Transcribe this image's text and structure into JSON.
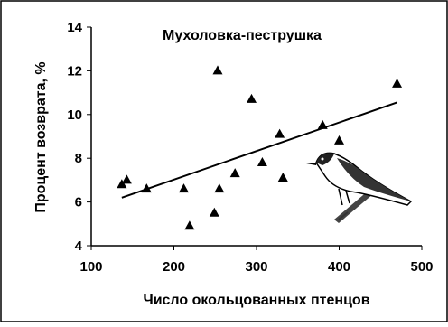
{
  "chart_data": {
    "type": "scatter",
    "title": "Мухоловка-пеструшка",
    "x_label": "Число окольцованных птенцов",
    "y_label": "Процент возврата, %",
    "x": [
      137,
      143,
      167,
      212,
      219,
      249,
      253,
      255,
      274,
      294,
      307,
      328,
      332,
      380,
      400,
      470
    ],
    "values": [
      6.8,
      7.0,
      6.6,
      6.6,
      4.9,
      5.5,
      12.0,
      6.6,
      7.3,
      10.7,
      7.8,
      9.1,
      7.1,
      9.5,
      8.8,
      11.4
    ],
    "color": "#000000",
    "trend": {
      "x": [
        137,
        470
      ],
      "values": [
        6.2,
        10.55
      ]
    },
    "xlim": [
      100,
      500
    ],
    "xticks": [
      100,
      200,
      300,
      400,
      500
    ],
    "ylim": [
      4,
      14
    ],
    "yticks": [
      4,
      6,
      8,
      10,
      12,
      14
    ],
    "grid": false
  }
}
